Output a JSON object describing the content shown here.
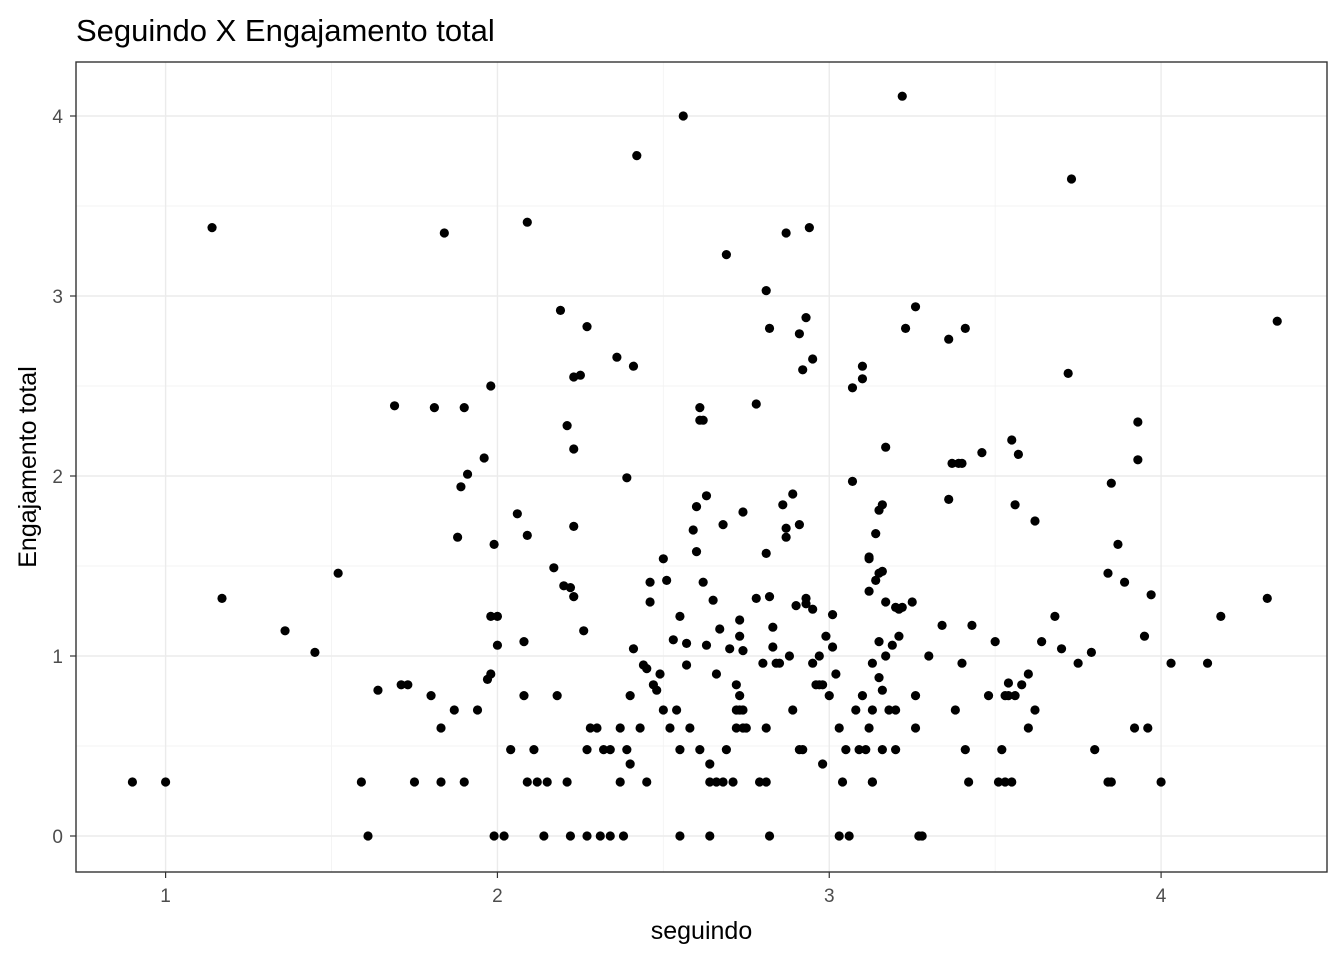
{
  "chart_data": {
    "type": "scatter",
    "title": "Seguindo X Engajamento total",
    "xlabel": "seguindo",
    "ylabel": "Engajamento total",
    "xlim": [
      0.73,
      4.5
    ],
    "ylim": [
      -0.2,
      4.3
    ],
    "x_ticks": [
      1,
      2,
      3,
      4
    ],
    "y_ticks": [
      0,
      1,
      2,
      3,
      4
    ],
    "x_tick_labels": [
      "1",
      "2",
      "3",
      "4"
    ],
    "y_tick_labels": [
      "0",
      "1",
      "2",
      "3",
      "4"
    ],
    "grid": true,
    "legend": "none",
    "point_color": "#000000",
    "points": [
      [
        0.9,
        0.3
      ],
      [
        1.0,
        0.3
      ],
      [
        1.14,
        3.38
      ],
      [
        1.17,
        1.32
      ],
      [
        1.36,
        1.14
      ],
      [
        1.45,
        1.02
      ],
      [
        1.52,
        1.46
      ],
      [
        1.59,
        0.3
      ],
      [
        1.61,
        0.0
      ],
      [
        1.64,
        0.81
      ],
      [
        1.69,
        2.39
      ],
      [
        1.71,
        0.84
      ],
      [
        1.73,
        0.84
      ],
      [
        1.75,
        0.3
      ],
      [
        1.8,
        0.78
      ],
      [
        1.81,
        2.38
      ],
      [
        1.83,
        0.3
      ],
      [
        1.83,
        0.6
      ],
      [
        1.84,
        3.35
      ],
      [
        1.87,
        0.7
      ],
      [
        1.88,
        1.66
      ],
      [
        1.89,
        1.94
      ],
      [
        1.9,
        0.3
      ],
      [
        1.9,
        2.38
      ],
      [
        1.91,
        2.01
      ],
      [
        1.94,
        0.7
      ],
      [
        1.96,
        2.1
      ],
      [
        1.97,
        0.87
      ],
      [
        1.98,
        2.5
      ],
      [
        1.98,
        0.9
      ],
      [
        1.98,
        1.22
      ],
      [
        1.99,
        1.62
      ],
      [
        2.0,
        1.22
      ],
      [
        2.0,
        1.06
      ],
      [
        1.99,
        0.0
      ],
      [
        2.02,
        0.0
      ],
      [
        2.04,
        0.48
      ],
      [
        2.06,
        1.79
      ],
      [
        2.08,
        0.78
      ],
      [
        2.08,
        1.08
      ],
      [
        2.09,
        0.3
      ],
      [
        2.09,
        1.67
      ],
      [
        2.09,
        3.41
      ],
      [
        2.11,
        0.48
      ],
      [
        2.12,
        0.3
      ],
      [
        2.14,
        0.0
      ],
      [
        2.15,
        0.3
      ],
      [
        2.17,
        1.49
      ],
      [
        2.18,
        0.78
      ],
      [
        2.19,
        2.92
      ],
      [
        2.2,
        1.39
      ],
      [
        2.21,
        0.3
      ],
      [
        2.21,
        2.28
      ],
      [
        2.22,
        0.0
      ],
      [
        2.22,
        1.38
      ],
      [
        2.23,
        2.55
      ],
      [
        2.23,
        2.15
      ],
      [
        2.23,
        1.72
      ],
      [
        2.23,
        1.33
      ],
      [
        2.25,
        2.56
      ],
      [
        2.26,
        1.14
      ],
      [
        2.27,
        0.48
      ],
      [
        2.27,
        0.0
      ],
      [
        2.27,
        2.83
      ],
      [
        2.28,
        0.6
      ],
      [
        2.3,
        0.6
      ],
      [
        2.31,
        0.0
      ],
      [
        2.32,
        0.48
      ],
      [
        2.34,
        0.48
      ],
      [
        2.34,
        0.0
      ],
      [
        2.36,
        2.66
      ],
      [
        2.37,
        0.6
      ],
      [
        2.37,
        0.3
      ],
      [
        2.38,
        0.0
      ],
      [
        2.39,
        0.48
      ],
      [
        2.39,
        1.99
      ],
      [
        2.4,
        0.4
      ],
      [
        2.4,
        0.78
      ],
      [
        2.41,
        1.04
      ],
      [
        2.41,
        2.61
      ],
      [
        2.42,
        3.78
      ],
      [
        2.43,
        0.6
      ],
      [
        2.44,
        0.95
      ],
      [
        2.45,
        0.93
      ],
      [
        2.45,
        0.3
      ],
      [
        2.46,
        1.41
      ],
      [
        2.46,
        1.3
      ],
      [
        2.47,
        0.84
      ],
      [
        2.48,
        0.81
      ],
      [
        2.49,
        0.9
      ],
      [
        2.5,
        1.54
      ],
      [
        2.5,
        0.7
      ],
      [
        2.51,
        1.42
      ],
      [
        2.52,
        0.6
      ],
      [
        2.53,
        1.09
      ],
      [
        2.54,
        0.7
      ],
      [
        2.55,
        1.22
      ],
      [
        2.55,
        0.48
      ],
      [
        2.55,
        0.0
      ],
      [
        2.56,
        4.0
      ],
      [
        2.57,
        1.07
      ],
      [
        2.57,
        0.95
      ],
      [
        2.58,
        0.6
      ],
      [
        2.59,
        1.7
      ],
      [
        2.6,
        1.83
      ],
      [
        2.6,
        1.58
      ],
      [
        2.61,
        2.38
      ],
      [
        2.61,
        2.31
      ],
      [
        2.61,
        0.48
      ],
      [
        2.62,
        2.31
      ],
      [
        2.62,
        1.41
      ],
      [
        2.63,
        1.89
      ],
      [
        2.63,
        1.06
      ],
      [
        2.64,
        0.4
      ],
      [
        2.64,
        0.3
      ],
      [
        2.64,
        0.0
      ],
      [
        2.65,
        1.31
      ],
      [
        2.66,
        0.9
      ],
      [
        2.66,
        0.3
      ],
      [
        2.67,
        1.15
      ],
      [
        2.68,
        0.3
      ],
      [
        2.68,
        1.73
      ],
      [
        2.69,
        3.23
      ],
      [
        2.69,
        0.48
      ],
      [
        2.7,
        1.04
      ],
      [
        2.71,
        0.3
      ],
      [
        2.72,
        0.84
      ],
      [
        2.72,
        0.6
      ],
      [
        2.72,
        0.7
      ],
      [
        2.73,
        0.7
      ],
      [
        2.73,
        1.11
      ],
      [
        2.73,
        1.2
      ],
      [
        2.73,
        0.78
      ],
      [
        2.74,
        0.7
      ],
      [
        2.74,
        0.6
      ],
      [
        2.74,
        1.03
      ],
      [
        2.74,
        1.8
      ],
      [
        2.75,
        0.6
      ],
      [
        2.78,
        2.4
      ],
      [
        2.78,
        1.32
      ],
      [
        2.79,
        0.3
      ],
      [
        2.8,
        0.96
      ],
      [
        2.81,
        1.57
      ],
      [
        2.81,
        3.03
      ],
      [
        2.81,
        0.3
      ],
      [
        2.81,
        0.6
      ],
      [
        2.82,
        1.33
      ],
      [
        2.82,
        2.82
      ],
      [
        2.82,
        0.0
      ],
      [
        2.83,
        1.16
      ],
      [
        2.83,
        1.05
      ],
      [
        2.84,
        0.96
      ],
      [
        2.85,
        0.96
      ],
      [
        2.86,
        1.84
      ],
      [
        2.87,
        1.71
      ],
      [
        2.87,
        1.66
      ],
      [
        2.87,
        3.35
      ],
      [
        2.88,
        1.0
      ],
      [
        2.89,
        0.7
      ],
      [
        2.89,
        1.9
      ],
      [
        2.9,
        1.28
      ],
      [
        2.91,
        2.79
      ],
      [
        2.91,
        1.73
      ],
      [
        2.91,
        0.48
      ],
      [
        2.92,
        0.48
      ],
      [
        2.92,
        2.59
      ],
      [
        2.93,
        1.32
      ],
      [
        2.93,
        1.29
      ],
      [
        2.93,
        2.88
      ],
      [
        2.94,
        3.38
      ],
      [
        2.95,
        2.65
      ],
      [
        2.95,
        1.26
      ],
      [
        2.95,
        0.96
      ],
      [
        2.96,
        0.84
      ],
      [
        2.97,
        1.0
      ],
      [
        2.97,
        0.84
      ],
      [
        2.98,
        0.4
      ],
      [
        2.98,
        0.84
      ],
      [
        2.99,
        1.11
      ],
      [
        3.0,
        0.78
      ],
      [
        3.01,
        1.05
      ],
      [
        3.01,
        1.23
      ],
      [
        3.02,
        0.9
      ],
      [
        3.03,
        0.6
      ],
      [
        3.03,
        0.0
      ],
      [
        3.04,
        0.3
      ],
      [
        3.05,
        0.48
      ],
      [
        3.06,
        0.0
      ],
      [
        3.07,
        1.97
      ],
      [
        3.07,
        2.49
      ],
      [
        3.08,
        0.7
      ],
      [
        3.09,
        0.48
      ],
      [
        3.1,
        0.78
      ],
      [
        3.1,
        2.54
      ],
      [
        3.1,
        2.61
      ],
      [
        3.11,
        0.48
      ],
      [
        3.12,
        1.36
      ],
      [
        3.12,
        1.55
      ],
      [
        3.12,
        1.54
      ],
      [
        3.12,
        0.6
      ],
      [
        3.13,
        0.3
      ],
      [
        3.13,
        0.7
      ],
      [
        3.13,
        0.3
      ],
      [
        3.13,
        0.96
      ],
      [
        3.14,
        1.68
      ],
      [
        3.14,
        1.42
      ],
      [
        3.15,
        1.81
      ],
      [
        3.15,
        1.46
      ],
      [
        3.15,
        1.08
      ],
      [
        3.15,
        0.88
      ],
      [
        3.16,
        1.84
      ],
      [
        3.16,
        1.47
      ],
      [
        3.16,
        0.81
      ],
      [
        3.16,
        0.48
      ],
      [
        3.17,
        2.16
      ],
      [
        3.17,
        1.3
      ],
      [
        3.17,
        1.0
      ],
      [
        3.18,
        0.7
      ],
      [
        3.19,
        1.06
      ],
      [
        3.2,
        1.27
      ],
      [
        3.2,
        0.7
      ],
      [
        3.2,
        0.48
      ],
      [
        3.21,
        1.26
      ],
      [
        3.21,
        1.11
      ],
      [
        3.22,
        1.27
      ],
      [
        3.22,
        4.11
      ],
      [
        3.23,
        2.82
      ],
      [
        3.25,
        1.3
      ],
      [
        3.26,
        2.94
      ],
      [
        3.26,
        0.78
      ],
      [
        3.26,
        0.6
      ],
      [
        3.27,
        0.0
      ],
      [
        3.28,
        0.0
      ],
      [
        3.3,
        1.0
      ],
      [
        3.34,
        1.17
      ],
      [
        3.36,
        1.87
      ],
      [
        3.36,
        2.76
      ],
      [
        3.37,
        2.07
      ],
      [
        3.38,
        0.7
      ],
      [
        3.39,
        2.07
      ],
      [
        3.4,
        2.07
      ],
      [
        3.4,
        0.96
      ],
      [
        3.41,
        0.48
      ],
      [
        3.41,
        2.82
      ],
      [
        3.42,
        0.3
      ],
      [
        3.43,
        1.17
      ],
      [
        3.46,
        2.13
      ],
      [
        3.48,
        0.78
      ],
      [
        3.5,
        1.08
      ],
      [
        3.51,
        0.3
      ],
      [
        3.52,
        0.48
      ],
      [
        3.53,
        0.3
      ],
      [
        3.53,
        0.78
      ],
      [
        3.54,
        0.78
      ],
      [
        3.54,
        0.85
      ],
      [
        3.55,
        0.3
      ],
      [
        3.55,
        2.2
      ],
      [
        3.56,
        1.84
      ],
      [
        3.56,
        0.78
      ],
      [
        3.57,
        2.12
      ],
      [
        3.58,
        0.84
      ],
      [
        3.6,
        0.9
      ],
      [
        3.6,
        0.6
      ],
      [
        3.62,
        0.7
      ],
      [
        3.62,
        1.75
      ],
      [
        3.64,
        1.08
      ],
      [
        3.68,
        1.22
      ],
      [
        3.7,
        1.04
      ],
      [
        3.72,
        2.57
      ],
      [
        3.73,
        3.65
      ],
      [
        3.75,
        0.96
      ],
      [
        3.79,
        1.02
      ],
      [
        3.8,
        0.48
      ],
      [
        3.84,
        0.3
      ],
      [
        3.85,
        0.3
      ],
      [
        3.84,
        1.46
      ],
      [
        3.85,
        1.96
      ],
      [
        3.87,
        1.62
      ],
      [
        3.89,
        1.41
      ],
      [
        3.93,
        2.09
      ],
      [
        3.93,
        2.3
      ],
      [
        3.92,
        0.6
      ],
      [
        3.96,
        0.6
      ],
      [
        3.95,
        1.11
      ],
      [
        3.97,
        1.34
      ],
      [
        4.0,
        0.3
      ],
      [
        4.03,
        0.96
      ],
      [
        4.14,
        0.96
      ],
      [
        4.18,
        1.22
      ],
      [
        4.32,
        1.32
      ],
      [
        4.35,
        2.86
      ]
    ]
  }
}
